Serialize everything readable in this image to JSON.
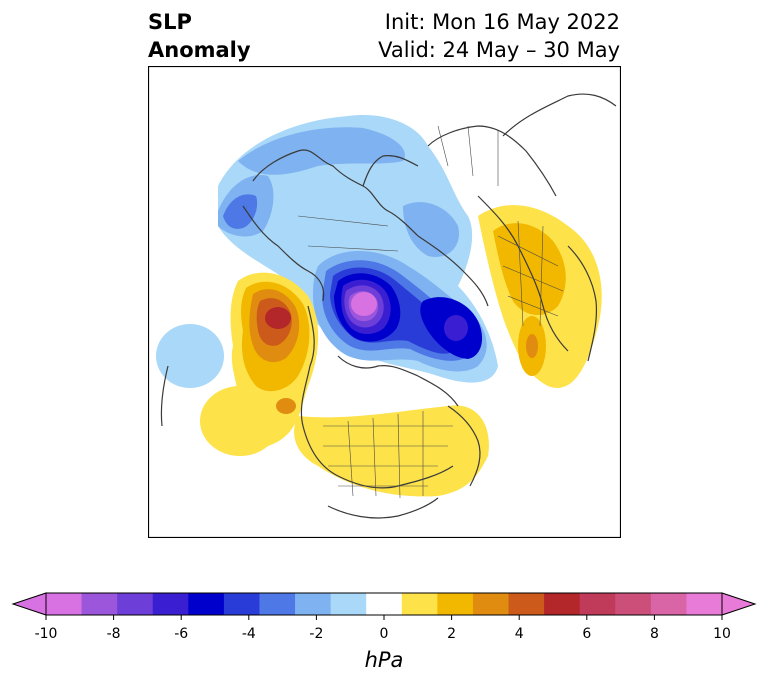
{
  "title": {
    "left_line1": "SLP",
    "left_line2": "Anomaly",
    "right_line1": "Init: Mon 16 May 2022",
    "right_line2": "Valid: 24 May – 30 May"
  },
  "colorbar": {
    "unit_label": "hPa",
    "ticks": [
      "-10",
      "-8",
      "-6",
      "-4",
      "-2",
      "0",
      "2",
      "4",
      "6",
      "8",
      "10"
    ],
    "levels": [
      -10,
      -9,
      -8,
      -7,
      -6,
      -5,
      -4,
      -3,
      -2,
      -1,
      1,
      2,
      3,
      4,
      5,
      6,
      7,
      8,
      9,
      10
    ],
    "colors": [
      "#d872e3",
      "#9b56dc",
      "#6d3fd8",
      "#3a1fd2",
      "#0000cc",
      "#2a3cd8",
      "#4d78e5",
      "#7fb2f0",
      "#aad8f8",
      "#ffffff",
      "#fde24a",
      "#f2b800",
      "#e08c10",
      "#cc5a1a",
      "#b3262a",
      "#c03a5a",
      "#cc4f7a",
      "#d964a6",
      "#e87ad8"
    ],
    "extend_low_color": "#d872e3",
    "extend_high_color": "#e87ad8"
  },
  "map": {
    "projection": "north-polar-stereographic",
    "field": "sea level pressure anomaly",
    "features": [
      {
        "name": "arctic-low",
        "value": -10
      },
      {
        "name": "barents-low",
        "value": -7
      },
      {
        "name": "alaska-low",
        "value": -4
      },
      {
        "name": "gulf-of-alaska-high",
        "value": 5
      },
      {
        "name": "east-siberia-high",
        "value": 2
      },
      {
        "name": "north-america-high",
        "value": 1
      }
    ]
  }
}
